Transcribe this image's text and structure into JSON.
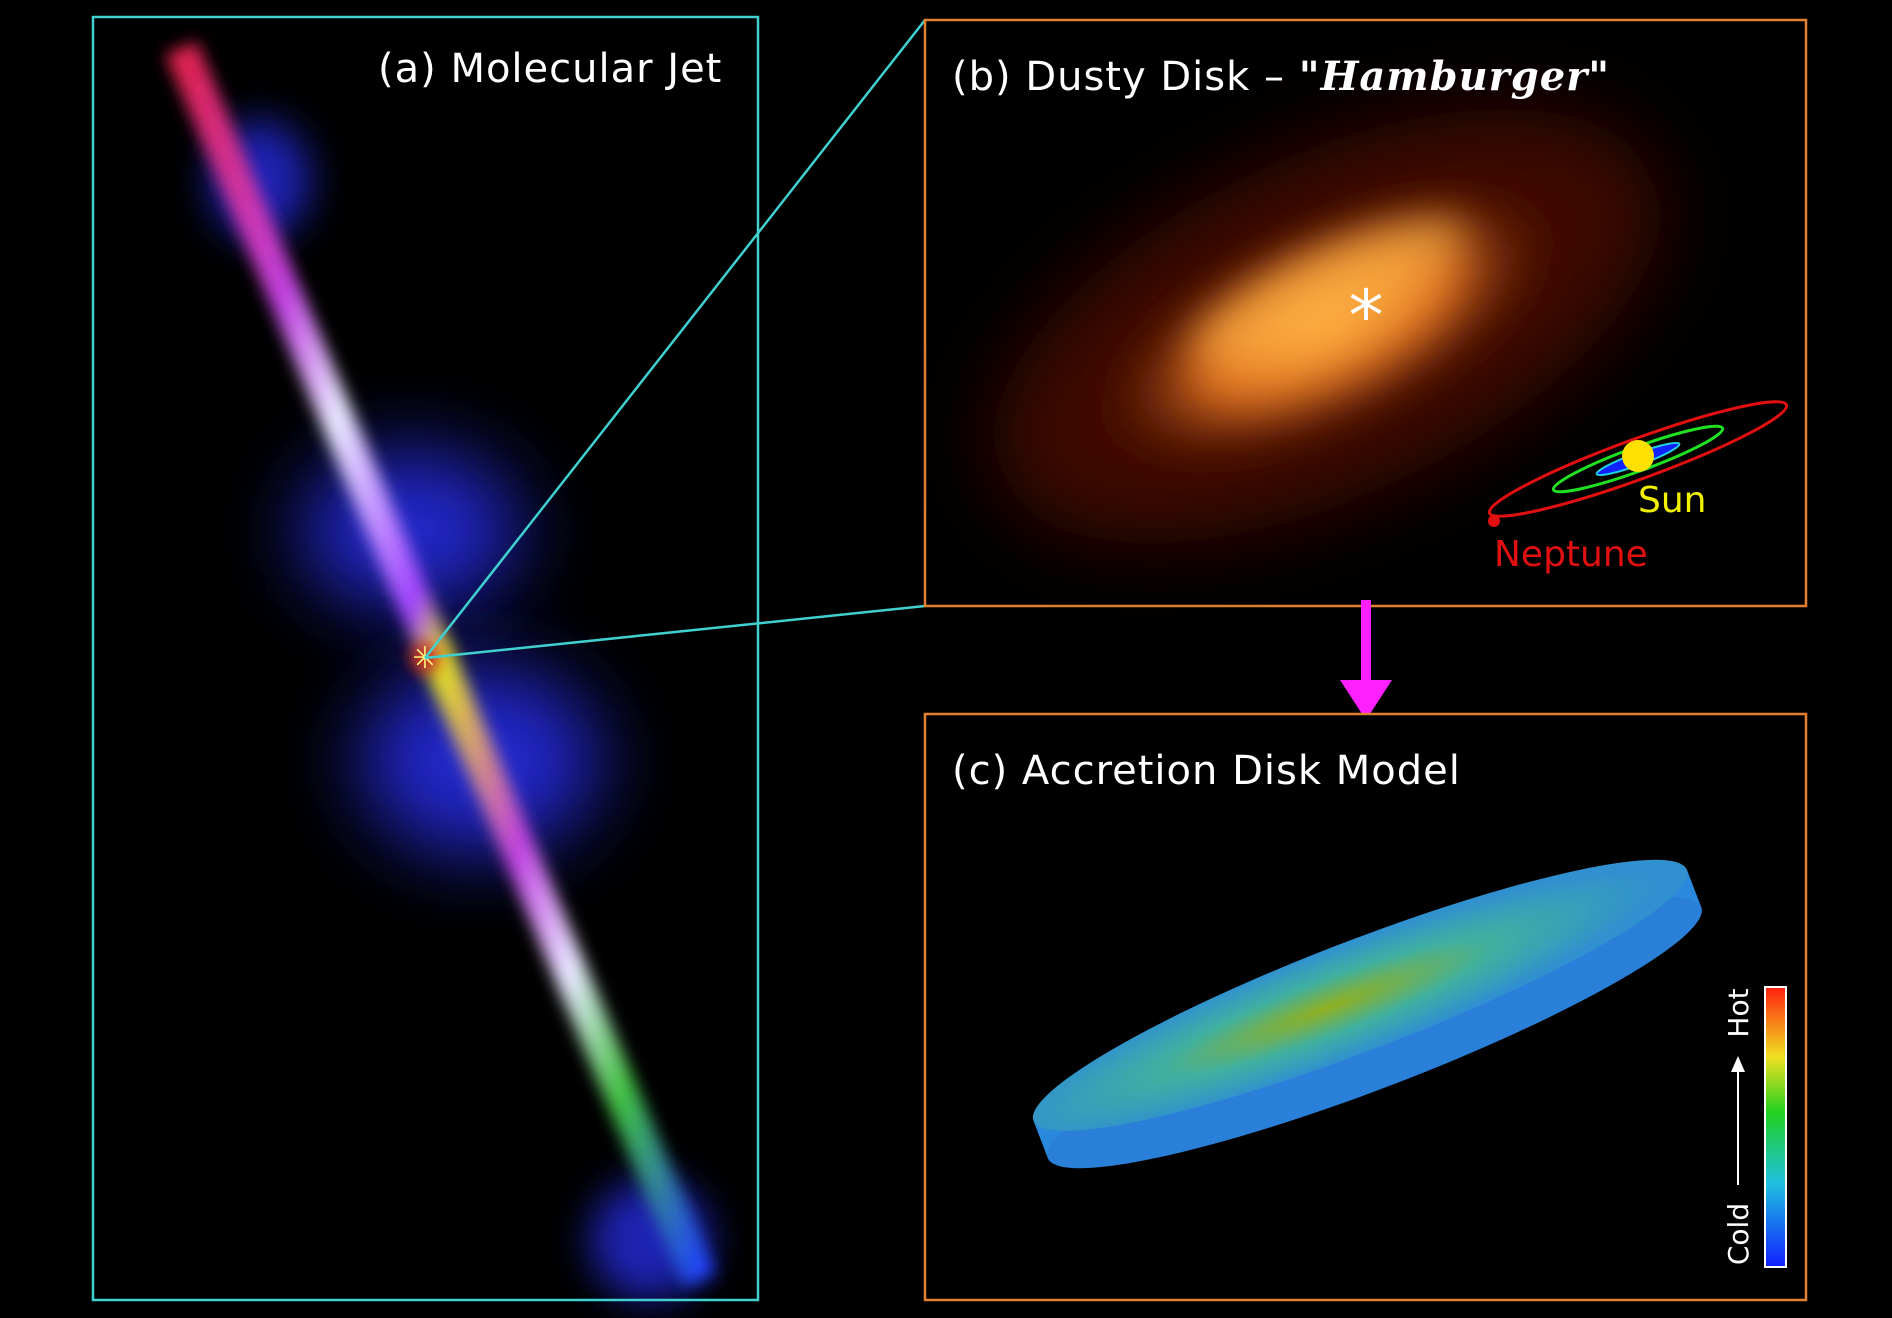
{
  "panels": {
    "a": {
      "title": "(a) Molecular Jet"
    },
    "b": {
      "title": "(b) Dusty Disk – ",
      "title_emphasis": "\"Hamburger\"",
      "sun": "Sun",
      "neptune": "Neptune"
    },
    "c": {
      "title": "(c) Accretion Disk Model",
      "hot": "Hot",
      "cold": "Cold"
    }
  }
}
